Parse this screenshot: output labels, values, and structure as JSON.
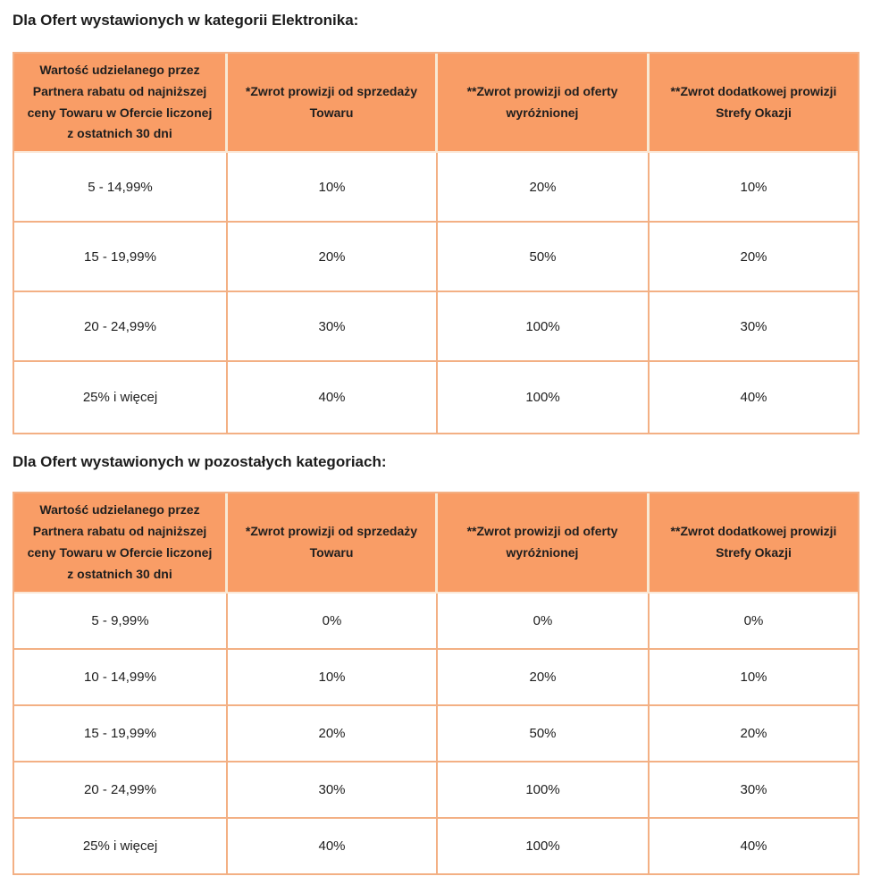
{
  "colors": {
    "header_bg": "#f99d66",
    "table_border": "#f3b084",
    "header_separator": "#f8e9d4",
    "text": "#1e1e1e"
  },
  "sections": [
    {
      "heading": "Dla Ofert wystawionych w kategorii Elektronika:",
      "columns": [
        "Wartość udzielanego przez Partnera rabatu od najniższej ceny Towaru w Ofercie liczonej z ostatnich 30 dni",
        "*Zwrot prowizji od sprzedaży Towaru",
        "**Zwrot prowizji od oferty wyróżnionej",
        "**Zwrot dodatkowej prowizji Strefy Okazji"
      ],
      "rows": [
        [
          "5 - 14,99%",
          "10%",
          "20%",
          "10%"
        ],
        [
          "15 - 19,99%",
          "20%",
          "50%",
          "20%"
        ],
        [
          "20 - 24,99%",
          "30%",
          "100%",
          "30%"
        ],
        [
          "25% i więcej",
          "40%",
          "100%",
          "40%"
        ]
      ]
    },
    {
      "heading": "Dla Ofert wystawionych w pozostałych kategoriach:",
      "columns": [
        "Wartość udzielanego przez Partnera rabatu od najniższej ceny Towaru w Ofercie liczonej z ostatnich 30 dni",
        "*Zwrot prowizji od sprzedaży Towaru",
        "**Zwrot prowizji od oferty wyróżnionej",
        "**Zwrot dodatkowej prowizji Strefy Okazji"
      ],
      "rows": [
        [
          "5 - 9,99%",
          "0%",
          "0%",
          "0%"
        ],
        [
          "10 - 14,99%",
          "10%",
          "20%",
          "10%"
        ],
        [
          "15 - 19,99%",
          "20%",
          "50%",
          "20%"
        ],
        [
          "20 - 24,99%",
          "30%",
          "100%",
          "30%"
        ],
        [
          "25% i więcej",
          "40%",
          "100%",
          "40%"
        ]
      ]
    }
  ]
}
